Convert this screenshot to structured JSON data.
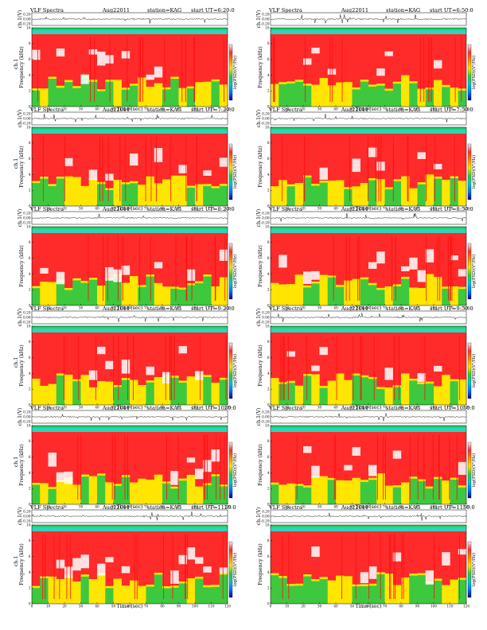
{
  "colors": {
    "spectrogram": [
      "#ff2a2a",
      "#ff1010",
      "#ffe600",
      "#ffb000",
      "#3ec83e",
      "#2bd6b8",
      "#00a6ff"
    ],
    "colorbar": [
      "#f2f2f2",
      "#ff3030",
      "#ff8c00",
      "#ffe600",
      "#33cc33",
      "#00c8c8",
      "#0077ff",
      "#0000a0"
    ],
    "waveform": "#000000"
  },
  "shared": {
    "title": "VLF Spectra",
    "date": "Aug22011",
    "station": "station=KAG",
    "start_prefix": "start UT",
    "xlabel": "Time (sec)",
    "ylabel_wave": "ch.1(V)",
    "ylabel_spec": "Frequency (kHz)",
    "ylabel_spec_alt": "ch.1",
    "cbar_label": "log(PSD)(V²/Hz)",
    "wave_ticks": [
      "0.20",
      "0.00",
      "-0.20"
    ]
  },
  "chart_data": [
    {
      "type": "heatmap",
      "title": "VLF Spectra",
      "date": "Aug22011",
      "station": "station=KAG",
      "start": "=6:20:0",
      "xlabel": "Time (sec)",
      "ylabel": "Frequency (kHz)",
      "ylabel_alt": "ch.1",
      "x_ticks": [
        "0",
        "10",
        "20",
        "30",
        "40",
        "50",
        "60",
        "70",
        "80",
        "90",
        "100",
        "110",
        "120"
      ],
      "y_ticks": [
        "0",
        "2",
        "4",
        "6",
        "8",
        "10"
      ],
      "xlim": [
        0,
        120
      ],
      "ylim": [
        0,
        10
      ]
    },
    {
      "type": "heatmap",
      "title": "VLF Spectra",
      "date": "Aug22011",
      "station": "station=KAG",
      "start": "=6:50:0",
      "xlabel": "Time (sec)",
      "ylabel": "Frequency (kHz)",
      "x_ticks": [
        "0",
        "10",
        "20",
        "30",
        "40",
        "50",
        "60",
        "70",
        "80",
        "90",
        "100",
        "110",
        "120"
      ],
      "y_ticks": [
        "0",
        "2",
        "4",
        "6",
        "8",
        "10"
      ],
      "xlim": [
        0,
        120
      ],
      "ylim": [
        0,
        10
      ]
    },
    {
      "type": "heatmap",
      "title": "VLF Spectra",
      "date": "Aug22011",
      "station": "station=KAG",
      "start": "=7:20:0",
      "xlabel": "Time (sec)",
      "ylabel": "Frequency (kHz)",
      "ylabel_alt": "ch.1",
      "x_ticks": [
        "0",
        "10",
        "20",
        "30",
        "40",
        "50",
        "60",
        "70",
        "80",
        "90",
        "100",
        "110",
        "120"
      ],
      "y_ticks": [
        "0",
        "2",
        "4",
        "6",
        "8",
        "10"
      ],
      "xlim": [
        0,
        120
      ],
      "ylim": [
        0,
        10
      ]
    },
    {
      "type": "heatmap",
      "title": "VLF Spectra",
      "date": "Aug22011",
      "station": "station=KAG",
      "start": "=7:50:0",
      "xlabel": "Time (sec)",
      "ylabel": "Frequency (kHz)",
      "x_ticks": [
        "0",
        "10",
        "20",
        "30",
        "40",
        "50",
        "60",
        "70",
        "80",
        "90",
        "100",
        "110",
        "120"
      ],
      "y_ticks": [
        "0",
        "2",
        "4",
        "6",
        "8",
        "10"
      ],
      "xlim": [
        0,
        120
      ],
      "ylim": [
        0,
        10
      ]
    },
    {
      "type": "heatmap",
      "title": "VLF Spectra",
      "date": "Aug22011",
      "station": "station=KAG",
      "start": "=8:20:0",
      "xlabel": "Time (sec)",
      "ylabel": "Frequency (kHz)",
      "x_ticks": [
        "0",
        "10",
        "20",
        "30",
        "40",
        "50",
        "60",
        "70",
        "80",
        "90",
        "100",
        "110",
        "120"
      ],
      "y_ticks": [
        "0",
        "2",
        "4",
        "6",
        "8",
        "10"
      ],
      "xlim": [
        0,
        120
      ],
      "ylim": [
        0,
        10
      ]
    },
    {
      "type": "heatmap",
      "title": "VLF Spectra",
      "date": "Aug22011",
      "station": "station=KAG",
      "start": "=8:50:0",
      "xlabel": "Time (sec)",
      "ylabel": "Frequency (kHz)",
      "x_ticks": [
        "0",
        "10",
        "20",
        "30",
        "40",
        "50",
        "60",
        "70",
        "80",
        "90",
        "100",
        "110",
        "120"
      ],
      "y_ticks": [
        "0",
        "2",
        "4",
        "6",
        "8",
        "10"
      ],
      "xlim": [
        0,
        120
      ],
      "ylim": [
        0,
        10
      ]
    },
    {
      "type": "heatmap",
      "title": "VLF Spectra",
      "date": "Aug22011",
      "station": "station=KAG",
      "start": "=9:20:0",
      "xlabel": "Time (sec)",
      "ylabel": "Frequency (kHz)",
      "ylabel_alt": "ch.1",
      "x_ticks": [
        "0",
        "10",
        "20",
        "30",
        "40",
        "50",
        "60",
        "70",
        "80",
        "90",
        "100",
        "110",
        "120"
      ],
      "y_ticks": [
        "0",
        "2",
        "4",
        "6",
        "8",
        "10"
      ],
      "xlim": [
        0,
        120
      ],
      "ylim": [
        0,
        10
      ]
    },
    {
      "type": "heatmap",
      "title": "VLF Spectra",
      "date": "Aug22011",
      "station": "station=KAG",
      "start": "=9:50:0",
      "xlabel": "Time (sec)",
      "ylabel": "Frequency (kHz)",
      "x_ticks": [
        "0",
        "10",
        "20",
        "30",
        "40",
        "50",
        "60",
        "70",
        "80",
        "90",
        "100",
        "110",
        "120"
      ],
      "y_ticks": [
        "0",
        "2",
        "4",
        "6",
        "8",
        "10"
      ],
      "xlim": [
        0,
        120
      ],
      "ylim": [
        0,
        10
      ]
    },
    {
      "type": "heatmap",
      "title": "VLF Spectra",
      "date": "Aug22011",
      "station": "station=KAG",
      "start": "=1020:0",
      "xlabel": "Time (sec)",
      "ylabel": "Frequency (kHz)",
      "ylabel_alt": "ch.1",
      "x_ticks": [
        "0",
        "10",
        "20",
        "30",
        "40",
        "50",
        "60",
        "70",
        "80",
        "90",
        "100",
        "110",
        "120"
      ],
      "y_ticks": [
        "0",
        "2",
        "4",
        "6",
        "8",
        "10"
      ],
      "xlim": [
        0,
        120
      ],
      "ylim": [
        0,
        10
      ]
    },
    {
      "type": "heatmap",
      "title": "VLF Spectra",
      "date": "Aug22011",
      "station": "station=KAG",
      "start": "=1050:0",
      "xlabel": "Time (sec)",
      "ylabel": "Frequency (kHz)",
      "x_ticks": [
        "0",
        "10",
        "20",
        "30",
        "40",
        "50",
        "60",
        "70",
        "80",
        "90",
        "100",
        "110",
        "120"
      ],
      "y_ticks": [
        "0",
        "2",
        "4",
        "6",
        "8",
        "10"
      ],
      "xlim": [
        0,
        120
      ],
      "ylim": [
        0,
        10
      ]
    },
    {
      "type": "heatmap",
      "title": "VLF Spectra",
      "date": "Aug22011",
      "station": "station=KAG",
      "start": "=1120:0",
      "xlabel": "Time (sec)",
      "ylabel": "Frequency (kHz)",
      "ylabel_alt": "ch.1",
      "x_ticks": [
        "0",
        "10",
        "20",
        "30",
        "40",
        "50",
        "60",
        "70",
        "80",
        "90",
        "100",
        "110",
        "120"
      ],
      "y_ticks": [
        "0",
        "2",
        "4",
        "6",
        "8",
        "10"
      ],
      "xlim": [
        0,
        120
      ],
      "ylim": [
        0,
        10
      ]
    },
    {
      "type": "heatmap",
      "title": "VLF Spectra",
      "date": "Aug22011",
      "station": "station=KAG",
      "start": "=1150:0",
      "xlabel": "Time (sec)",
      "ylabel": "Frequency (kHz)",
      "x_ticks": [
        "0",
        "10",
        "20",
        "30",
        "40",
        "50",
        "60",
        "70",
        "80",
        "90",
        "100",
        "110",
        "120"
      ],
      "y_ticks": [
        "0",
        "2",
        "4",
        "6",
        "8",
        "10"
      ],
      "xlim": [
        0,
        120
      ],
      "ylim": [
        0,
        10
      ]
    }
  ]
}
